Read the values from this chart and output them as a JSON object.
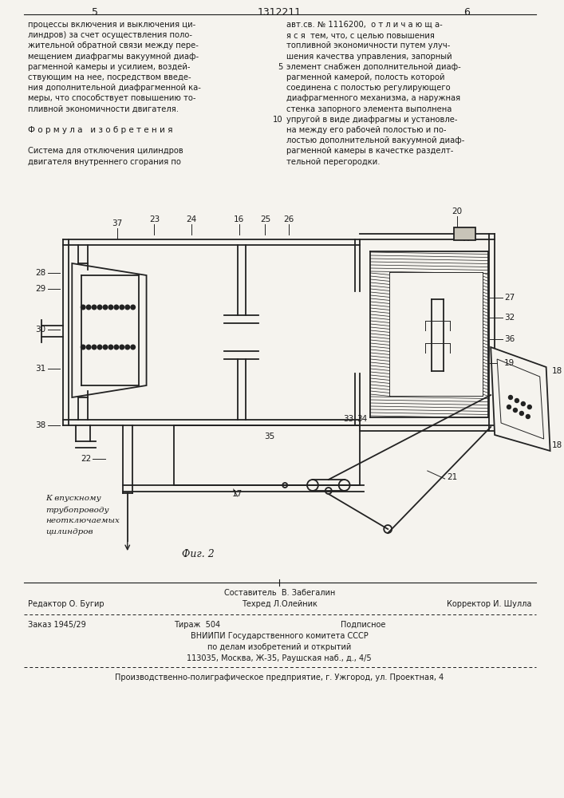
{
  "page_number_left": "5",
  "patent_number": "1312211",
  "page_number_right": "6",
  "bg_color": "#f5f3ee",
  "text_color": "#1a1a1a",
  "left_column_text": [
    "процессы включения и выключения ци-",
    "линдров) за счет осуществления поло-",
    "жительной обратной связи между пере-",
    "мещением диафрагмы вакуумной диаф-",
    "рагменной камеры и усилием, воздей-",
    "ствующим на нее, посредством введе-",
    "ния дополнительной диафрагменной ка-",
    "меры, что способствует повышению то-",
    "пливной экономичности двигателя.",
    "",
    "Ф о р м у л а   и з о б р е т е н и я",
    "",
    "Система для отключения цилиндров",
    "двигателя внутреннего сгорания по"
  ],
  "right_column_text": [
    "авт.св. № 1116200,  о т л и ч а ю щ а-",
    "я с я  тем, что, с целью повышения",
    "топливной экономичности путем улуч-",
    "шения качества управления, запорный",
    "элемент снабжен дополнительной диаф-",
    "рагменной камерой, полость которой",
    "соединена с полостью регулирующего",
    "диафрагменного механизма, а наружная",
    "стенка запорного элемента выполнена",
    "упругой в виде диафрагмы и установле-",
    "на между его рабочей полостью и по-",
    "лостью дополнительной вакуумной диаф-",
    "рагменной камеры в качестке разделт-",
    "тельной перегородки."
  ],
  "caption_left": "К впускному\nтрубопроводу\nнеотключаемых\nцилиндров",
  "fig_label": "Фиг. 2",
  "footer_left_editor": "Редактор О. Бугир",
  "footer_center_composer": "Составитель  В. Забегалин",
  "footer_center_techred": "Техред Л.Олейник",
  "footer_right_corrector": "Корректор И. Шулла",
  "footer_order": "Заказ 1945/29",
  "footer_tirazh": "Тираж  504",
  "footer_podpisnoe": "Подписное",
  "footer_vniiipi": "ВНИИПИ Государственного комитета СССР",
  "footer_vniiipi2": "по делам изобретений и открытий",
  "footer_address": "113035, Москва, Ж-35, Раушская наб., д., 4/5",
  "footer_production": "Производственно-полиграфическое предприятие, г. Ужгород, ул. Проектная, 4"
}
